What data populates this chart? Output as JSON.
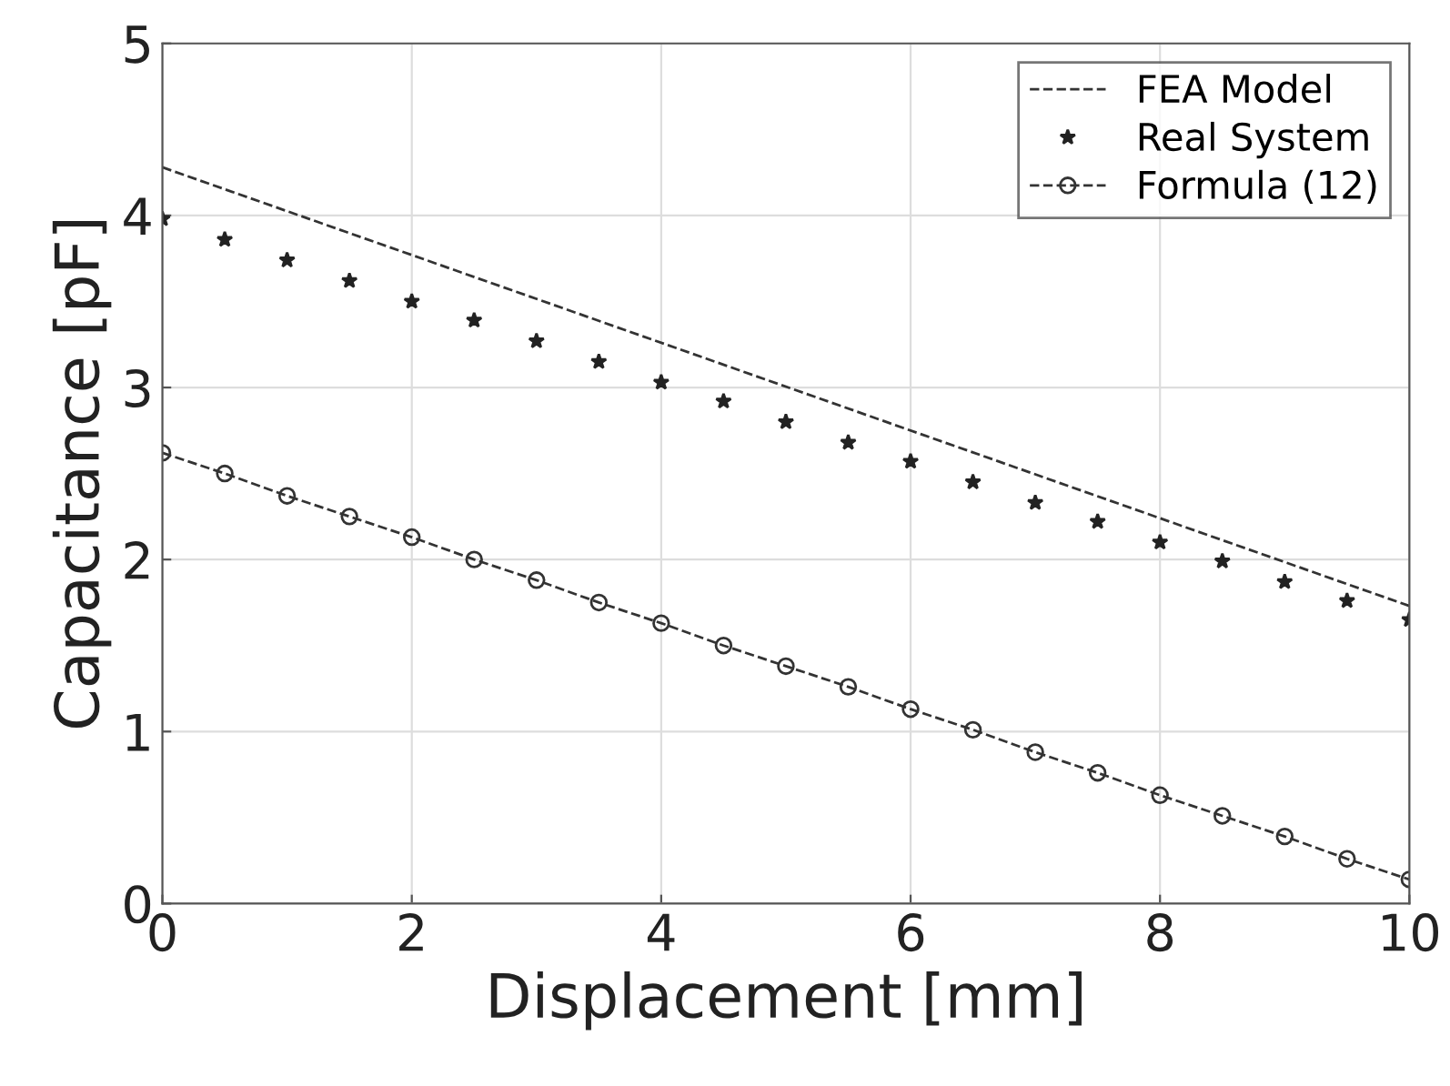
{
  "chart_data": {
    "type": "line",
    "xlabel": "Displacement [mm]",
    "ylabel": "Capacitance [pF]",
    "xlim": [
      0,
      10
    ],
    "xticks": [
      0,
      2,
      4,
      6,
      8,
      10
    ],
    "ylim": [
      0,
      5
    ],
    "yticks": [
      0,
      1,
      2,
      3,
      4,
      5
    ],
    "grid": true,
    "legend": "top right",
    "series": [
      {
        "name": "FEA Model",
        "color": "#333333",
        "line_style": "dashed",
        "marker": "none",
        "x": [
          0,
          10
        ],
        "values": [
          4.28,
          1.73
        ]
      },
      {
        "name": "Real System",
        "type": "scatter",
        "color": "#222222",
        "marker": "star",
        "x": [
          0,
          0.5,
          1,
          1.5,
          2,
          2.5,
          3,
          3.5,
          4,
          4.5,
          5,
          5.5,
          6,
          6.5,
          7,
          7.5,
          8,
          8.5,
          9,
          9.5,
          10
        ],
        "values": [
          3.98,
          3.86,
          3.74,
          3.62,
          3.5,
          3.39,
          3.27,
          3.15,
          3.03,
          2.92,
          2.8,
          2.68,
          2.57,
          2.45,
          2.33,
          2.22,
          2.1,
          1.99,
          1.87,
          1.76,
          1.65
        ]
      },
      {
        "name": "Formula (12)",
        "color": "#333333",
        "line_style": "dashed",
        "marker": "circle",
        "x": [
          0,
          0.5,
          1,
          1.5,
          2,
          2.5,
          3,
          3.5,
          4,
          4.5,
          5,
          5.5,
          6,
          6.5,
          7,
          7.5,
          8,
          8.5,
          9,
          9.5,
          10
        ],
        "values": [
          2.62,
          2.5,
          2.37,
          2.25,
          2.13,
          2.0,
          1.88,
          1.75,
          1.63,
          1.5,
          1.38,
          1.26,
          1.13,
          1.01,
          0.88,
          0.76,
          0.63,
          0.51,
          0.39,
          0.26,
          0.14
        ]
      }
    ]
  }
}
